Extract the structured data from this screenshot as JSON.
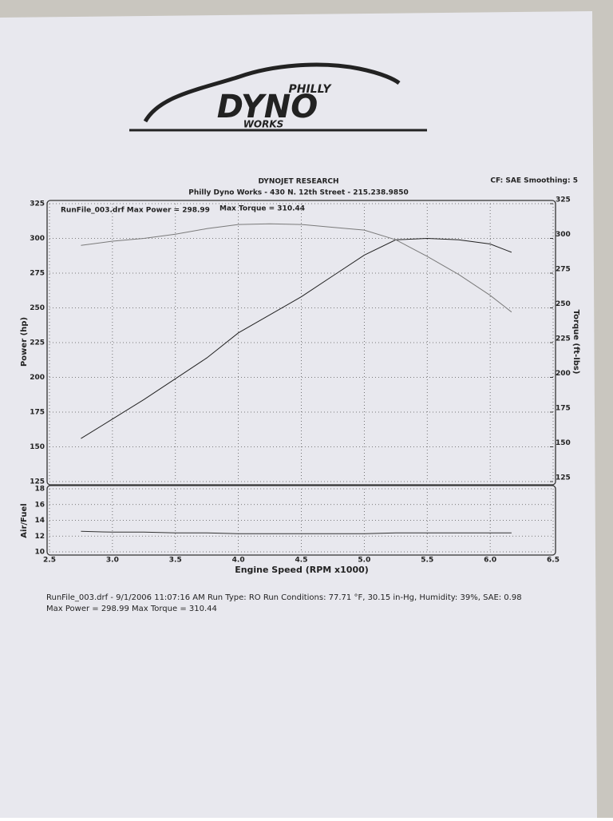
{
  "logo": {
    "top": "PHILLY",
    "main": "DYNO",
    "bottom": "WORKS"
  },
  "chart_data": [
    {
      "type": "line",
      "title": "DYNOJET RESEARCH",
      "subtitle": "Philly Dyno Works - 430 N. 12th Street - 215.238.9850",
      "corner_note": "CF: SAE  Smoothing: 5",
      "annotations": [
        "RunFile_003.drf Max Power = 298.99",
        "Max Torque = 310.44"
      ],
      "ylabel": "Power (hp)",
      "y2label": "Torque (ft-lbs)",
      "ylim": [
        125,
        325
      ],
      "yticks": [
        125,
        150,
        175,
        200,
        225,
        250,
        275,
        300,
        325
      ],
      "y2lim": [
        125,
        325
      ],
      "y2ticks": [
        125,
        150,
        175,
        200,
        225,
        250,
        275,
        300,
        325
      ],
      "grid": true,
      "x": [
        2.75,
        3.0,
        3.25,
        3.5,
        3.75,
        4.0,
        4.25,
        4.5,
        4.75,
        5.0,
        5.25,
        5.5,
        5.75,
        6.0,
        6.17
      ],
      "series": [
        {
          "name": "Power",
          "color": "#222222",
          "values": [
            156,
            170,
            184,
            199,
            214,
            232,
            245,
            258,
            273,
            288,
            298.99,
            300,
            299,
            296,
            290
          ]
        },
        {
          "name": "Torque",
          "color": "#7a7a7a",
          "axis": "y2",
          "values": [
            295,
            298,
            300,
            303,
            307,
            310,
            310.44,
            310,
            308,
            306,
            299,
            287,
            274,
            259,
            247
          ]
        }
      ]
    },
    {
      "type": "line",
      "ylabel": "Air/Fuel",
      "xlabel": "Engine Speed (RPM x1000)",
      "xlim": [
        2.5,
        6.5
      ],
      "xticks": [
        2.5,
        {
          "value": 3,
          "label": "3.0"
        },
        3.5,
        {
          "value": 4,
          "label": "4.0"
        },
        4.5,
        {
          "value": 5,
          "label": "5.0"
        },
        5.5,
        {
          "value": 6,
          "label": "6.0"
        },
        6.5
      ],
      "ylim": [
        10,
        18
      ],
      "yticks": [
        10,
        12,
        14,
        16,
        18
      ],
      "grid": true,
      "x": [
        2.75,
        3.0,
        3.25,
        3.5,
        3.75,
        4.0,
        4.25,
        4.5,
        4.75,
        5.0,
        5.25,
        5.5,
        5.75,
        6.0,
        6.17
      ],
      "series": [
        {
          "name": "Air/Fuel",
          "color": "#333333",
          "values": [
            12.6,
            12.5,
            12.5,
            12.4,
            12.4,
            12.3,
            12.3,
            12.3,
            12.3,
            12.3,
            12.4,
            12.4,
            12.4,
            12.4,
            12.4
          ]
        }
      ]
    }
  ],
  "footer": {
    "line1": "RunFile_003.drf - 9/1/2006 11:07:16 AM  Run Type: RO  Run Conditions: 77.71 °F, 30.15 in-Hg,  Humidity:  39%, SAE: 0.98",
    "line2": "Max Power = 298.99  Max Torque = 310.44"
  }
}
